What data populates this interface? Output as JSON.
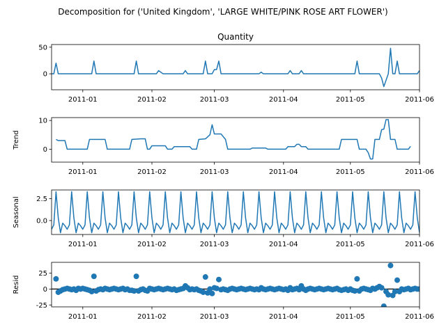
{
  "chart_data": {
    "type": "line",
    "suptitle": "Decomposition for ('United Kingdom', 'LARGE WHITE/PINK ROSE ART FLOWER')",
    "x_range": [
      "2010-12-18",
      "2011-06-01"
    ],
    "x_ticks": [
      "2011-01",
      "2011-02",
      "2011-03",
      "2011-04",
      "2011-05",
      "2011-06"
    ],
    "line_color": "#1f77b4",
    "panels": [
      {
        "name": "observed",
        "title": "Quantity",
        "ylabel": "",
        "ylim": [
          -30,
          55
        ],
        "yticks": [
          0,
          50
        ],
        "style": "line",
        "points": [
          [
            "2010-12-18",
            0
          ],
          [
            "2010-12-19",
            0
          ],
          [
            "2010-12-20",
            20
          ],
          [
            "2010-12-21",
            0
          ],
          [
            "2010-12-22",
            0
          ],
          [
            "2011-01-05",
            0
          ],
          [
            "2011-01-06",
            24
          ],
          [
            "2011-01-07",
            0
          ],
          [
            "2011-01-24",
            0
          ],
          [
            "2011-01-25",
            24
          ],
          [
            "2011-01-26",
            0
          ],
          [
            "2011-02-03",
            0
          ],
          [
            "2011-02-04",
            6
          ],
          [
            "2011-02-06",
            0
          ],
          [
            "2011-02-15",
            0
          ],
          [
            "2011-02-16",
            6
          ],
          [
            "2011-02-17",
            0
          ],
          [
            "2011-02-24",
            0
          ],
          [
            "2011-02-25",
            24
          ],
          [
            "2011-02-26",
            0
          ],
          [
            "2011-02-28",
            0
          ],
          [
            "2011-03-01",
            8
          ],
          [
            "2011-03-02",
            8
          ],
          [
            "2011-03-03",
            24
          ],
          [
            "2011-03-04",
            0
          ],
          [
            "2011-03-21",
            0
          ],
          [
            "2011-03-22",
            3
          ],
          [
            "2011-03-23",
            0
          ],
          [
            "2011-04-03",
            0
          ],
          [
            "2011-04-04",
            6
          ],
          [
            "2011-04-05",
            0
          ],
          [
            "2011-04-08",
            0
          ],
          [
            "2011-04-09",
            6
          ],
          [
            "2011-04-10",
            0
          ],
          [
            "2011-05-03",
            0
          ],
          [
            "2011-05-04",
            24
          ],
          [
            "2011-05-05",
            0
          ],
          [
            "2011-05-14",
            0
          ],
          [
            "2011-05-15",
            -8
          ],
          [
            "2011-05-16",
            -24
          ],
          [
            "2011-05-18",
            0
          ],
          [
            "2011-05-19",
            48
          ],
          [
            "2011-05-20",
            0
          ],
          [
            "2011-05-21",
            0
          ],
          [
            "2011-05-22",
            24
          ],
          [
            "2011-05-23",
            0
          ],
          [
            "2011-05-31",
            0
          ],
          [
            "2011-06-01",
            6
          ]
        ]
      },
      {
        "name": "trend",
        "title": "",
        "ylabel": "Trend",
        "ylim": [
          -4.5,
          11
        ],
        "yticks": [
          0,
          10
        ],
        "style": "line",
        "points": [
          [
            "2010-12-20",
            3.4
          ],
          [
            "2010-12-21",
            3.0
          ],
          [
            "2010-12-24",
            3.0
          ],
          [
            "2010-12-25",
            0
          ],
          [
            "2011-01-03",
            0
          ],
          [
            "2011-01-04",
            3.4
          ],
          [
            "2011-01-11",
            3.4
          ],
          [
            "2011-01-12",
            0
          ],
          [
            "2011-01-22",
            0
          ],
          [
            "2011-01-23",
            3.4
          ],
          [
            "2011-01-27",
            3.6
          ],
          [
            "2011-01-29",
            3.6
          ],
          [
            "2011-01-30",
            0
          ],
          [
            "2011-01-31",
            0
          ],
          [
            "2011-02-01",
            1.2
          ],
          [
            "2011-02-07",
            1.2
          ],
          [
            "2011-02-08",
            0
          ],
          [
            "2011-02-10",
            0
          ],
          [
            "2011-02-11",
            0.9
          ],
          [
            "2011-02-18",
            0.9
          ],
          [
            "2011-02-19",
            0
          ],
          [
            "2011-02-21",
            0
          ],
          [
            "2011-02-22",
            3.4
          ],
          [
            "2011-02-25",
            3.6
          ],
          [
            "2011-02-27",
            5.0
          ],
          [
            "2011-02-28",
            8.5
          ],
          [
            "2011-03-01",
            5.3
          ],
          [
            "2011-03-04",
            5.3
          ],
          [
            "2011-03-06",
            3.4
          ],
          [
            "2011-03-07",
            0
          ],
          [
            "2011-03-17",
            0
          ],
          [
            "2011-03-18",
            0.4
          ],
          [
            "2011-03-24",
            0.4
          ],
          [
            "2011-03-25",
            0
          ],
          [
            "2011-04-02",
            0
          ],
          [
            "2011-04-03",
            0.9
          ],
          [
            "2011-04-06",
            0.9
          ],
          [
            "2011-04-07",
            1.7
          ],
          [
            "2011-04-08",
            1.7
          ],
          [
            "2011-04-09",
            0.9
          ],
          [
            "2011-04-11",
            0.9
          ],
          [
            "2011-04-12",
            0
          ],
          [
            "2011-04-26",
            0
          ],
          [
            "2011-04-27",
            3.4
          ],
          [
            "2011-05-04",
            3.4
          ],
          [
            "2011-05-05",
            0
          ],
          [
            "2011-05-08",
            0
          ],
          [
            "2011-05-09",
            -1.2
          ],
          [
            "2011-05-10",
            -3.4
          ],
          [
            "2011-05-11",
            -3.4
          ],
          [
            "2011-05-12",
            3.4
          ],
          [
            "2011-05-14",
            3.4
          ],
          [
            "2011-05-15",
            6.8
          ],
          [
            "2011-05-16",
            7.0
          ],
          [
            "2011-05-17",
            10.3
          ],
          [
            "2011-05-18",
            10.3
          ],
          [
            "2011-05-19",
            3.4
          ],
          [
            "2011-05-21",
            3.4
          ],
          [
            "2011-05-22",
            0
          ],
          [
            "2011-05-27",
            0
          ],
          [
            "2011-05-28",
            1.0
          ]
        ]
      },
      {
        "name": "seasonal",
        "title": "",
        "ylabel": "Seasonal",
        "ylim": [
          -1.6,
          3.5
        ],
        "yticks": [
          0.0,
          2.5
        ],
        "style": "periodic",
        "period_days": 7,
        "start": "2010-12-18",
        "end": "2011-06-01",
        "cycle": [
          -1.0,
          -0.5,
          3.3,
          0.3,
          -1.4,
          -0.3,
          -0.6
        ]
      },
      {
        "name": "resid",
        "title": "",
        "ylabel": "Resid",
        "ylim": [
          -28,
          42
        ],
        "yticks": [
          -25,
          0,
          25
        ],
        "style": "scatter",
        "zero_line": true,
        "points": [
          [
            "2010-12-20",
            16
          ],
          [
            "2010-12-21",
            -5
          ],
          [
            "2010-12-22",
            -3
          ],
          [
            "2010-12-23",
            -1
          ],
          [
            "2010-12-24",
            0
          ],
          [
            "2010-12-25",
            1
          ],
          [
            "2010-12-26",
            0
          ],
          [
            "2010-12-27",
            -1
          ],
          [
            "2010-12-28",
            0
          ],
          [
            "2010-12-29",
            -2
          ],
          [
            "2010-12-30",
            1
          ],
          [
            "2010-12-31",
            0
          ],
          [
            "2011-01-01",
            1
          ],
          [
            "2011-01-02",
            0
          ],
          [
            "2011-01-03",
            -1
          ],
          [
            "2011-01-04",
            -2
          ],
          [
            "2011-01-05",
            -4
          ],
          [
            "2011-01-06",
            20
          ],
          [
            "2011-01-07",
            -3
          ],
          [
            "2011-01-08",
            -1
          ],
          [
            "2011-01-09",
            0
          ],
          [
            "2011-01-10",
            -1
          ],
          [
            "2011-01-11",
            1
          ],
          [
            "2011-01-12",
            0
          ],
          [
            "2011-01-13",
            -1
          ],
          [
            "2011-01-14",
            0
          ],
          [
            "2011-01-15",
            1
          ],
          [
            "2011-01-16",
            0
          ],
          [
            "2011-01-17",
            -1
          ],
          [
            "2011-01-18",
            0
          ],
          [
            "2011-01-19",
            1
          ],
          [
            "2011-01-20",
            -1
          ],
          [
            "2011-01-21",
            0
          ],
          [
            "2011-01-22",
            -2
          ],
          [
            "2011-01-23",
            -2
          ],
          [
            "2011-01-24",
            -3
          ],
          [
            "2011-01-25",
            20
          ],
          [
            "2011-01-26",
            -3
          ],
          [
            "2011-01-27",
            -1
          ],
          [
            "2011-01-28",
            0
          ],
          [
            "2011-01-29",
            -2
          ],
          [
            "2011-01-30",
            -3
          ],
          [
            "2011-01-31",
            1
          ],
          [
            "2011-02-01",
            0
          ],
          [
            "2011-02-02",
            -1
          ],
          [
            "2011-02-03",
            0
          ],
          [
            "2011-02-04",
            1
          ],
          [
            "2011-02-05",
            0
          ],
          [
            "2011-02-06",
            -1
          ],
          [
            "2011-02-07",
            0
          ],
          [
            "2011-02-08",
            1
          ],
          [
            "2011-02-09",
            0
          ],
          [
            "2011-02-10",
            -1
          ],
          [
            "2011-02-11",
            0
          ],
          [
            "2011-02-12",
            -2
          ],
          [
            "2011-02-13",
            -1
          ],
          [
            "2011-02-14",
            0
          ],
          [
            "2011-02-15",
            1
          ],
          [
            "2011-02-16",
            5
          ],
          [
            "2011-02-17",
            2
          ],
          [
            "2011-02-18",
            -1
          ],
          [
            "2011-02-19",
            0
          ],
          [
            "2011-02-20",
            -1
          ],
          [
            "2011-02-21",
            0
          ],
          [
            "2011-02-22",
            -2
          ],
          [
            "2011-02-23",
            -3
          ],
          [
            "2011-02-24",
            -5
          ],
          [
            "2011-02-25",
            19
          ],
          [
            "2011-02-26",
            -6
          ],
          [
            "2011-02-27",
            0
          ],
          [
            "2011-02-28",
            -7
          ],
          [
            "2011-03-01",
            2
          ],
          [
            "2011-03-02",
            1
          ],
          [
            "2011-03-03",
            15
          ],
          [
            "2011-03-04",
            -1
          ],
          [
            "2011-03-05",
            0
          ],
          [
            "2011-03-06",
            -1
          ],
          [
            "2011-03-07",
            -2
          ],
          [
            "2011-03-08",
            0
          ],
          [
            "2011-03-09",
            1
          ],
          [
            "2011-03-10",
            0
          ],
          [
            "2011-03-11",
            -1
          ],
          [
            "2011-03-12",
            0
          ],
          [
            "2011-03-13",
            1
          ],
          [
            "2011-03-14",
            0
          ],
          [
            "2011-03-15",
            -1
          ],
          [
            "2011-03-16",
            0
          ],
          [
            "2011-03-17",
            1
          ],
          [
            "2011-03-18",
            0
          ],
          [
            "2011-03-19",
            -1
          ],
          [
            "2011-03-20",
            0
          ],
          [
            "2011-03-21",
            -1
          ],
          [
            "2011-03-22",
            2
          ],
          [
            "2011-03-23",
            0
          ],
          [
            "2011-03-24",
            -1
          ],
          [
            "2011-03-25",
            0
          ],
          [
            "2011-03-26",
            1
          ],
          [
            "2011-03-27",
            0
          ],
          [
            "2011-03-28",
            -1
          ],
          [
            "2011-03-29",
            0
          ],
          [
            "2011-03-30",
            1
          ],
          [
            "2011-03-31",
            0
          ],
          [
            "2011-04-01",
            -1
          ],
          [
            "2011-04-02",
            0
          ],
          [
            "2011-04-03",
            -2
          ],
          [
            "2011-04-04",
            2
          ],
          [
            "2011-04-05",
            -1
          ],
          [
            "2011-04-06",
            0
          ],
          [
            "2011-04-07",
            1
          ],
          [
            "2011-04-08",
            -1
          ],
          [
            "2011-04-09",
            5
          ],
          [
            "2011-04-10",
            0
          ],
          [
            "2011-04-11",
            -2
          ],
          [
            "2011-04-12",
            0
          ],
          [
            "2011-04-13",
            1
          ],
          [
            "2011-04-14",
            0
          ],
          [
            "2011-04-15",
            -1
          ],
          [
            "2011-04-16",
            0
          ],
          [
            "2011-04-17",
            1
          ],
          [
            "2011-04-18",
            0
          ],
          [
            "2011-04-19",
            -1
          ],
          [
            "2011-04-20",
            0
          ],
          [
            "2011-04-21",
            1
          ],
          [
            "2011-04-22",
            0
          ],
          [
            "2011-04-23",
            -1
          ],
          [
            "2011-04-24",
            0
          ],
          [
            "2011-04-25",
            1
          ],
          [
            "2011-04-26",
            -1
          ],
          [
            "2011-04-27",
            -2
          ],
          [
            "2011-04-28",
            -1
          ],
          [
            "2011-04-29",
            0
          ],
          [
            "2011-04-30",
            -2
          ],
          [
            "2011-05-01",
            0
          ],
          [
            "2011-05-02",
            -2
          ],
          [
            "2011-05-03",
            -3
          ],
          [
            "2011-05-04",
            16
          ],
          [
            "2011-05-05",
            -3
          ],
          [
            "2011-05-06",
            0
          ],
          [
            "2011-05-07",
            1
          ],
          [
            "2011-05-08",
            0
          ],
          [
            "2011-05-09",
            -1
          ],
          [
            "2011-05-10",
            -2
          ],
          [
            "2011-05-11",
            1
          ],
          [
            "2011-05-12",
            0
          ],
          [
            "2011-05-13",
            2
          ],
          [
            "2011-05-14",
            4
          ],
          [
            "2011-05-15",
            2
          ],
          [
            "2011-05-16",
            -27
          ],
          [
            "2011-05-17",
            -4
          ],
          [
            "2011-05-18",
            -9
          ],
          [
            "2011-05-19",
            37
          ],
          [
            "2011-05-20",
            -10
          ],
          [
            "2011-05-21",
            -4
          ],
          [
            "2011-05-22",
            14
          ],
          [
            "2011-05-23",
            -4
          ],
          [
            "2011-05-24",
            0
          ],
          [
            "2011-05-25",
            -1
          ],
          [
            "2011-05-26",
            0
          ],
          [
            "2011-05-27",
            1
          ],
          [
            "2011-05-28",
            -1
          ],
          [
            "2011-05-29",
            0
          ],
          [
            "2011-05-30",
            1
          ],
          [
            "2011-05-31",
            0
          ],
          [
            "2011-06-01",
            0
          ]
        ]
      }
    ]
  }
}
